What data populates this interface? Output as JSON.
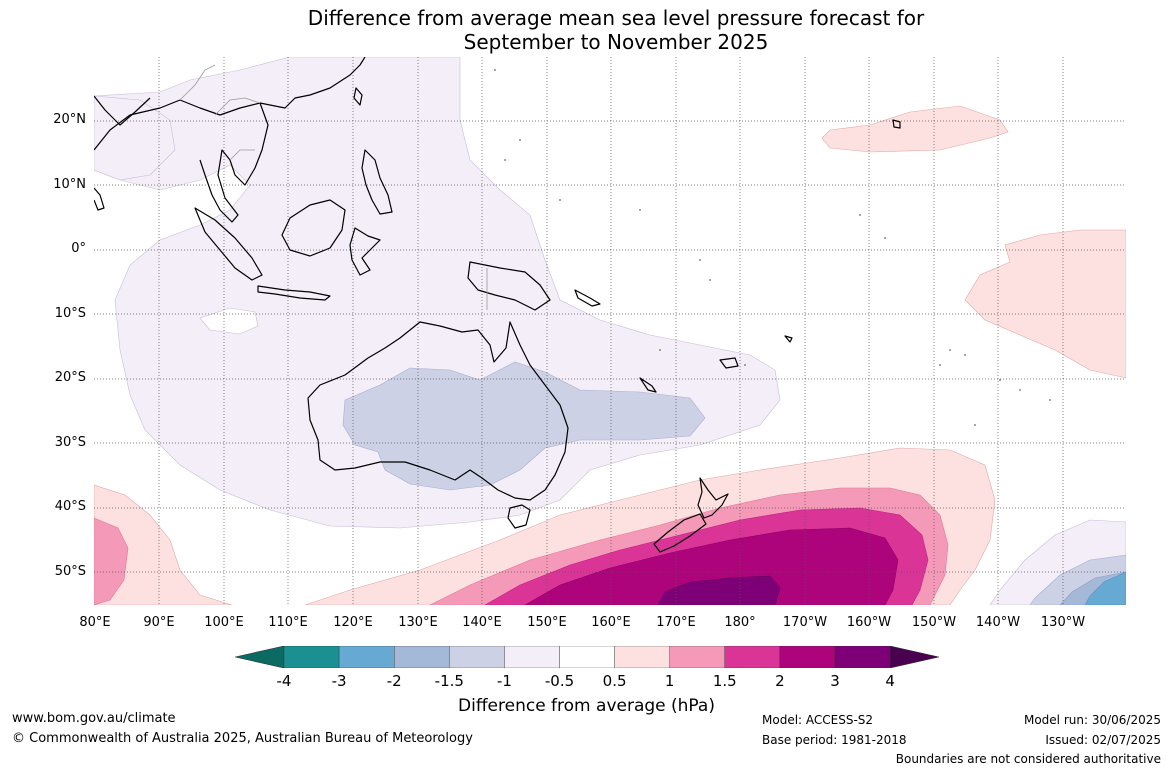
{
  "title": {
    "line1": "Difference from average mean sea level pressure forecast for",
    "line2": "September to November 2025"
  },
  "map": {
    "lat_labels": [
      "20°N",
      "10°N",
      "0°",
      "10°S",
      "20°S",
      "30°S",
      "40°S",
      "50°S"
    ],
    "lon_labels": [
      "80°E",
      "90°E",
      "100°E",
      "110°E",
      "120°E",
      "130°E",
      "140°E",
      "150°E",
      "160°E",
      "170°E",
      "180°",
      "170°W",
      "160°W",
      "150°W",
      "140°W",
      "130°W"
    ]
  },
  "colorbar": {
    "ticks": [
      "-4",
      "-3",
      "-2",
      "-1.5",
      "-1",
      "-0.5",
      "0.5",
      "1",
      "1.5",
      "2",
      "3",
      "4"
    ],
    "colors": [
      "#1a9092",
      "#66aad4",
      "#a4b8d8",
      "#cdd1e6",
      "#f3eef7",
      "#ffffff",
      "#fde0e0",
      "#f49ab8",
      "#da3596",
      "#ad047c",
      "#7d0077"
    ],
    "under_color": "#0b6b63",
    "over_color": "#4a004f",
    "label": "Difference from average (hPa)"
  },
  "footer": {
    "website": "www.bom.gov.au/climate",
    "copyright": "© Commonwealth of Australia 2025, Australian Bureau of Meteorology",
    "model": "Model: ACCESS-S2",
    "base_period": "Base period: 1981-2018",
    "model_run": "Model run: 30/06/2025",
    "issued": "Issued: 02/07/2025",
    "disclaimer": "Boundaries are not considered authoritative"
  }
}
